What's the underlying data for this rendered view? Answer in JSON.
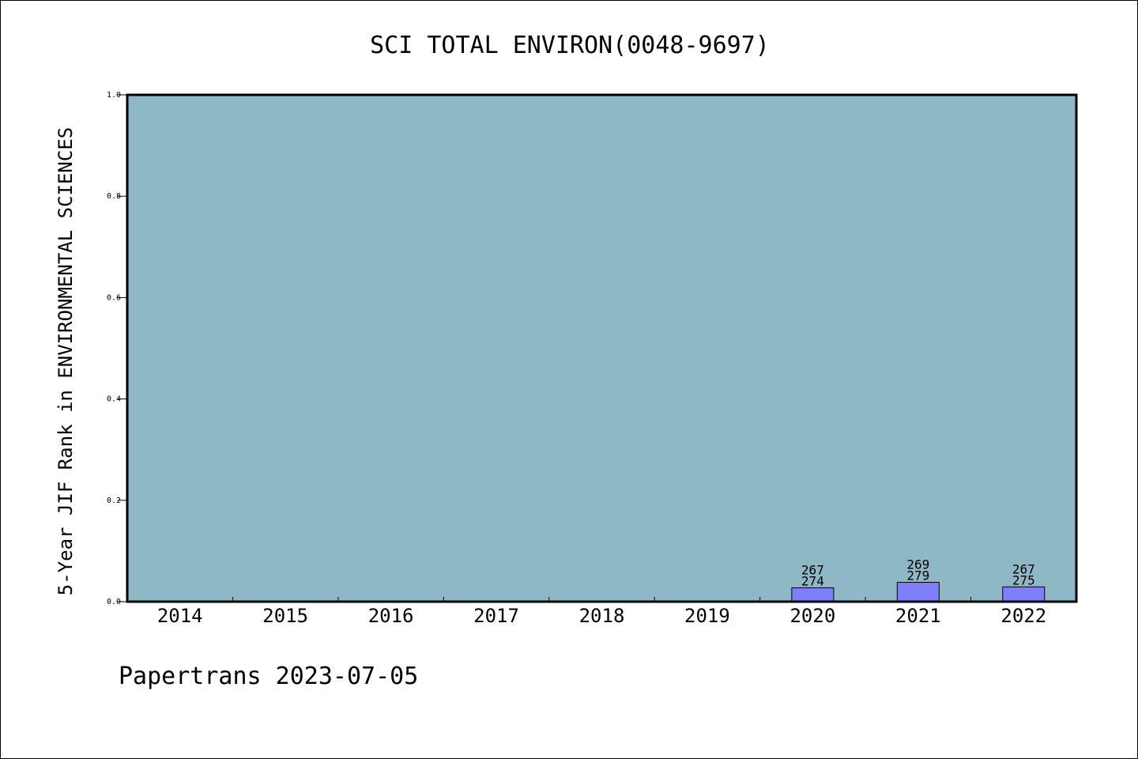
{
  "chart_data": {
    "type": "bar",
    "title": "SCI TOTAL ENVIRON(0048-9697)",
    "ylabel": "5-Year JIF Rank in ENVIRONMENTAL SCIENCES",
    "xlabel": "",
    "categories": [
      "2014",
      "2015",
      "2016",
      "2017",
      "2018",
      "2019",
      "2020",
      "2021",
      "2022"
    ],
    "values": [
      null,
      null,
      null,
      null,
      null,
      null,
      0.0274,
      0.0382,
      0.0291
    ],
    "bar_labels": [
      {
        "category": "2020",
        "rank": "267",
        "total": "274"
      },
      {
        "category": "2021",
        "rank": "269",
        "total": "279"
      },
      {
        "category": "2022",
        "rank": "267",
        "total": "275"
      }
    ],
    "ylim": [
      0,
      1.0
    ],
    "yticks": [
      "0.0",
      "0.2",
      "0.4",
      "0.6",
      "0.8",
      "1.0"
    ],
    "grid": false,
    "colors": {
      "plot_background": "#8fb7c5",
      "bar_fill": "#7f7ffa",
      "axis": "#000000"
    }
  },
  "footer": "Papertrans 2023-07-05"
}
